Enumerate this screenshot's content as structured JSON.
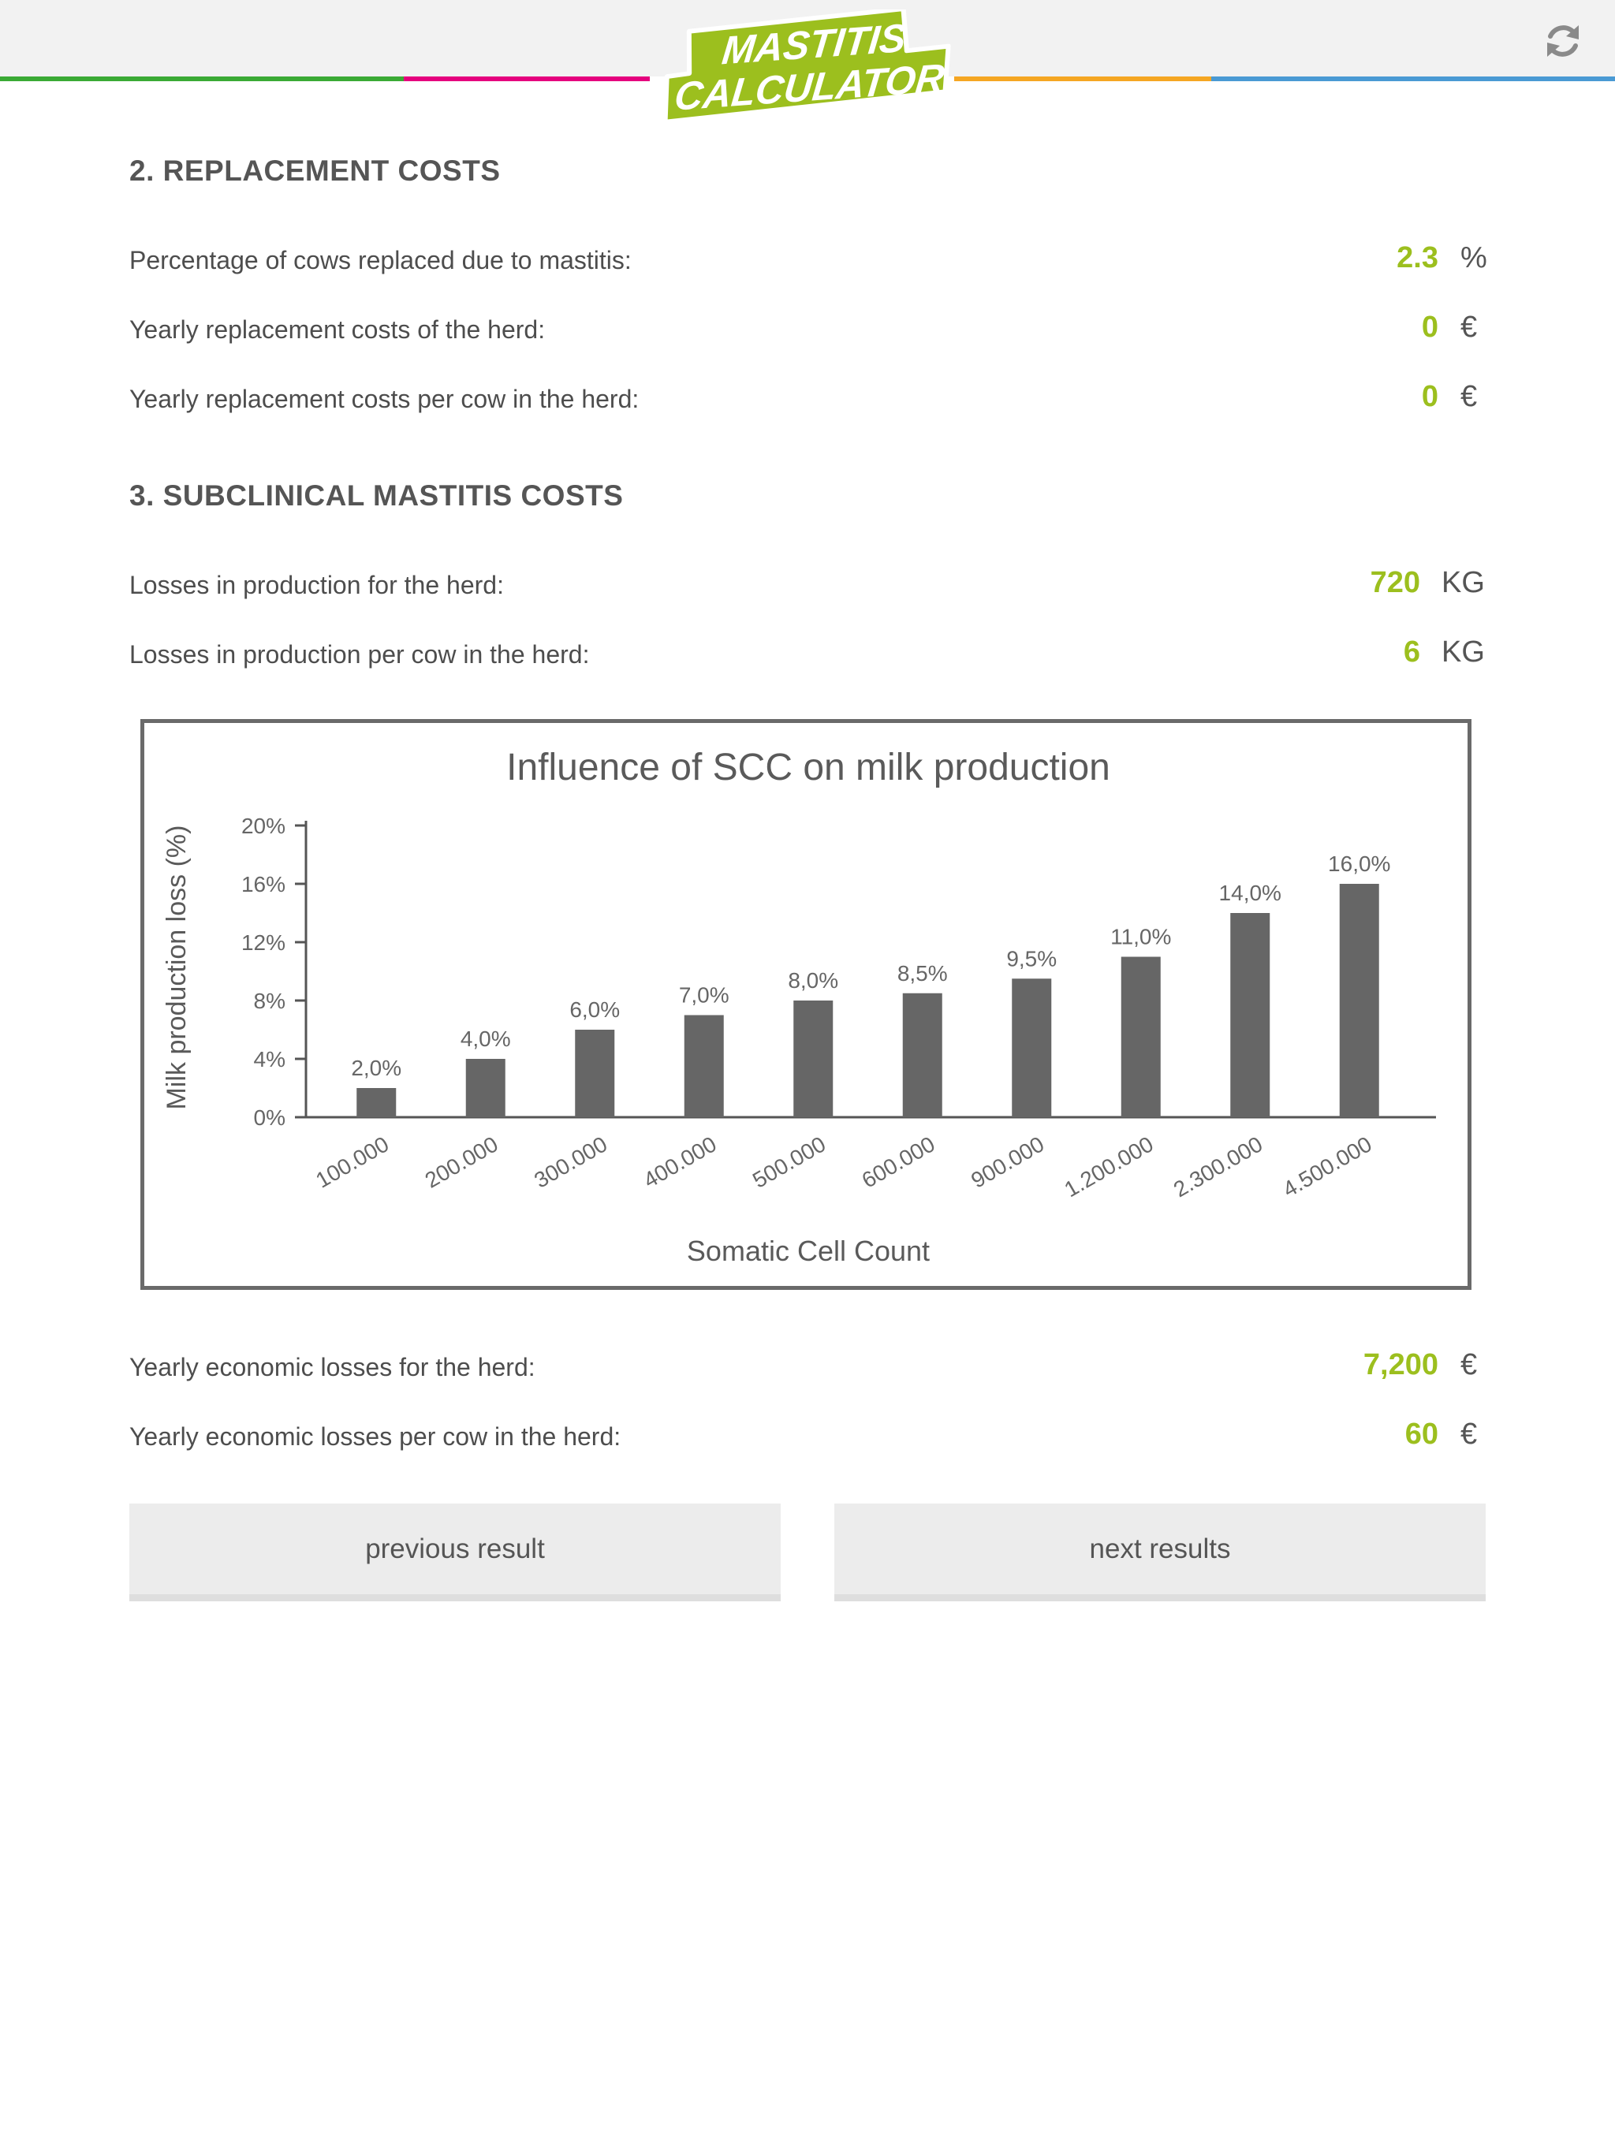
{
  "header": {
    "logo_line1": "MASTITIS",
    "logo_line2": "CALCULATOR",
    "stripe_colors": [
      "#3aaa35",
      "#e5007e",
      "#ffffff",
      "#f5a623",
      "#4a9ad4"
    ],
    "accent_green": "#a6c81e",
    "refresh_icon": "refresh-icon"
  },
  "replacement": {
    "title": "2. REPLACEMENT COSTS",
    "rows": [
      {
        "label": "Percentage of cows replaced due to mastitis:",
        "value": "2.3",
        "unit": "%"
      },
      {
        "label": "Yearly replacement costs of the herd:",
        "value": "0",
        "unit": "€"
      },
      {
        "label": "Yearly replacement costs per cow in the herd:",
        "value": "0",
        "unit": "€"
      }
    ]
  },
  "subclinical": {
    "title": "3. SUBCLINICAL MASTITIS COSTS",
    "rows": [
      {
        "label": "Losses in production for the herd:",
        "value": "720",
        "unit": "KG"
      },
      {
        "label": "Losses in production per cow in the herd:",
        "value": "6",
        "unit": "KG"
      }
    ]
  },
  "chart_data": {
    "type": "bar",
    "title": "Influence of SCC on milk production",
    "xlabel": "Somatic Cell Count",
    "ylabel": "Milk production loss (%)",
    "categories": [
      "100.000",
      "200.000",
      "300.000",
      "400.000",
      "500.000",
      "600.000",
      "900.000",
      "1.200.000",
      "2.300.000",
      "4.500.000"
    ],
    "values": [
      2.0,
      4.0,
      6.0,
      7.0,
      8.0,
      8.5,
      9.5,
      11.0,
      14.0,
      16.0
    ],
    "data_labels": [
      "2,0%",
      "4,0%",
      "6,0%",
      "7,0%",
      "8,0%",
      "8,5%",
      "9,5%",
      "11,0%",
      "14,0%",
      "16,0%"
    ],
    "y_ticks": [
      "0%",
      "4%",
      "8%",
      "12%",
      "16%",
      "20%"
    ],
    "ylim": [
      0,
      20
    ],
    "bar_color": "#666666",
    "grid": false,
    "legend": "none"
  },
  "economic": {
    "rows": [
      {
        "label": "Yearly economic losses for the herd:",
        "value": "7,200",
        "unit": "€"
      },
      {
        "label": "Yearly economic losses per cow in the herd:",
        "value": "60",
        "unit": "€"
      }
    ]
  },
  "buttons": {
    "previous": "previous result",
    "next": "next results"
  }
}
